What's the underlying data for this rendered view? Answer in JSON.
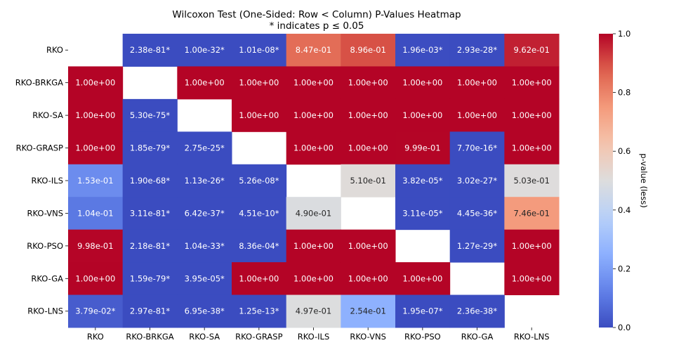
{
  "chart_data": {
    "type": "heatmap",
    "title": "Wilcoxon Test (One-Sided: Row < Column) P-Values Heatmap",
    "subtitle": "* indicates p ≤ 0.05",
    "rows": [
      "RKO",
      "RKO-BRKGA",
      "RKO-SA",
      "RKO-GRASP",
      "RKO-ILS",
      "RKO-VNS",
      "RKO-PSO",
      "RKO-GA",
      "RKO-LNS"
    ],
    "columns": [
      "RKO",
      "RKO-BRKGA",
      "RKO-SA",
      "RKO-GRASP",
      "RKO-ILS",
      "RKO-VNS",
      "RKO-PSO",
      "RKO-GA",
      "RKO-LNS"
    ],
    "cells": [
      [
        null,
        {
          "label": "2.38e-81*",
          "value": 0
        },
        {
          "label": "1.00e-32*",
          "value": 0
        },
        {
          "label": "1.01e-08*",
          "value": 0
        },
        {
          "label": "8.47e-01",
          "value": 0.847
        },
        {
          "label": "8.96e-01",
          "value": 0.896
        },
        {
          "label": "1.96e-03*",
          "value": 0.00196
        },
        {
          "label": "2.93e-28*",
          "value": 0
        },
        {
          "label": "9.62e-01",
          "value": 0.962
        }
      ],
      [
        {
          "label": "1.00e+00",
          "value": 1
        },
        null,
        {
          "label": "1.00e+00",
          "value": 1
        },
        {
          "label": "1.00e+00",
          "value": 1
        },
        {
          "label": "1.00e+00",
          "value": 1
        },
        {
          "label": "1.00e+00",
          "value": 1
        },
        {
          "label": "1.00e+00",
          "value": 1
        },
        {
          "label": "1.00e+00",
          "value": 1
        },
        {
          "label": "1.00e+00",
          "value": 1
        }
      ],
      [
        {
          "label": "1.00e+00",
          "value": 1
        },
        {
          "label": "5.30e-75*",
          "value": 0
        },
        null,
        {
          "label": "1.00e+00",
          "value": 1
        },
        {
          "label": "1.00e+00",
          "value": 1
        },
        {
          "label": "1.00e+00",
          "value": 1
        },
        {
          "label": "1.00e+00",
          "value": 1
        },
        {
          "label": "1.00e+00",
          "value": 1
        },
        {
          "label": "1.00e+00",
          "value": 1
        }
      ],
      [
        {
          "label": "1.00e+00",
          "value": 1
        },
        {
          "label": "1.85e-79*",
          "value": 0
        },
        {
          "label": "2.75e-25*",
          "value": 0
        },
        null,
        {
          "label": "1.00e+00",
          "value": 1
        },
        {
          "label": "1.00e+00",
          "value": 1
        },
        {
          "label": "9.99e-01",
          "value": 0.999
        },
        {
          "label": "7.70e-16*",
          "value": 0
        },
        {
          "label": "1.00e+00",
          "value": 1
        }
      ],
      [
        {
          "label": "1.53e-01",
          "value": 0.153
        },
        {
          "label": "1.90e-68*",
          "value": 0
        },
        {
          "label": "1.13e-26*",
          "value": 0
        },
        {
          "label": "5.26e-08*",
          "value": 0
        },
        null,
        {
          "label": "5.10e-01",
          "value": 0.51
        },
        {
          "label": "3.82e-05*",
          "value": 3.82e-05
        },
        {
          "label": "3.02e-27*",
          "value": 0
        },
        {
          "label": "5.03e-01",
          "value": 0.503
        }
      ],
      [
        {
          "label": "1.04e-01",
          "value": 0.104
        },
        {
          "label": "3.11e-81*",
          "value": 0
        },
        {
          "label": "6.42e-37*",
          "value": 0
        },
        {
          "label": "4.51e-10*",
          "value": 0
        },
        {
          "label": "4.90e-01",
          "value": 0.49
        },
        null,
        {
          "label": "3.11e-05*",
          "value": 3.11e-05
        },
        {
          "label": "4.45e-36*",
          "value": 0
        },
        {
          "label": "7.46e-01",
          "value": 0.746
        }
      ],
      [
        {
          "label": "9.98e-01",
          "value": 0.998
        },
        {
          "label": "2.18e-81*",
          "value": 0
        },
        {
          "label": "1.04e-33*",
          "value": 0
        },
        {
          "label": "8.36e-04*",
          "value": 0.000836
        },
        {
          "label": "1.00e+00",
          "value": 1
        },
        {
          "label": "1.00e+00",
          "value": 1
        },
        null,
        {
          "label": "1.27e-29*",
          "value": 0
        },
        {
          "label": "1.00e+00",
          "value": 1
        }
      ],
      [
        {
          "label": "1.00e+00",
          "value": 1
        },
        {
          "label": "1.59e-79*",
          "value": 0
        },
        {
          "label": "3.95e-05*",
          "value": 3.95e-05
        },
        {
          "label": "1.00e+00",
          "value": 1
        },
        {
          "label": "1.00e+00",
          "value": 1
        },
        {
          "label": "1.00e+00",
          "value": 1
        },
        {
          "label": "1.00e+00",
          "value": 1
        },
        null,
        {
          "label": "1.00e+00",
          "value": 1
        }
      ],
      [
        {
          "label": "3.79e-02*",
          "value": 0.0379
        },
        {
          "label": "2.97e-81*",
          "value": 0
        },
        {
          "label": "6.95e-38*",
          "value": 0
        },
        {
          "label": "1.25e-13*",
          "value": 0
        },
        {
          "label": "4.97e-01",
          "value": 0.497
        },
        {
          "label": "2.54e-01",
          "value": 0.254
        },
        {
          "label": "1.95e-07*",
          "value": 0
        },
        {
          "label": "2.36e-38*",
          "value": 0
        },
        null
      ]
    ],
    "colorbar": {
      "label": "p-value (less)",
      "range": [
        0,
        1
      ],
      "ticks": [
        "0.0",
        "0.2",
        "0.4",
        "0.6",
        "0.8",
        "1.0"
      ],
      "colormap": "coolwarm",
      "low_color": "#3b4cc0",
      "mid_color": "#dddddd",
      "high_color": "#b40426"
    },
    "grid": false,
    "legend": "right"
  }
}
